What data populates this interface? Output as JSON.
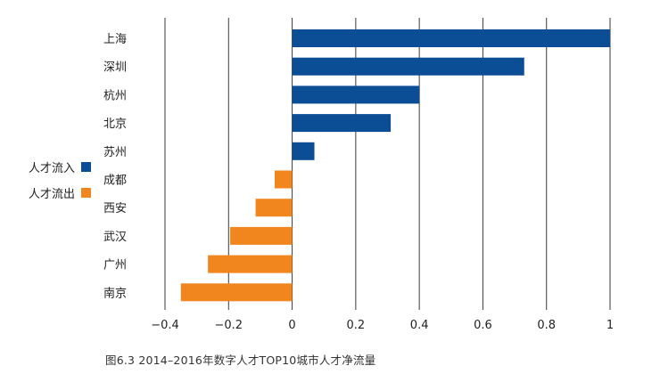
{
  "chart_data": {
    "type": "bar",
    "orientation": "horizontal",
    "caption": "图6.3 2014–2016年数字人才TOP10城市人才净流量",
    "categories": [
      "上海",
      "深圳",
      "杭州",
      "北京",
      "苏州",
      "成都",
      "西安",
      "武汉",
      "广州",
      "南京"
    ],
    "values": [
      1.0,
      0.73,
      0.4,
      0.31,
      0.07,
      -0.055,
      -0.115,
      -0.195,
      -0.265,
      -0.35
    ],
    "xlim": [
      -0.4,
      1.0
    ],
    "xticks": [
      -0.4,
      -0.2,
      0,
      0.2,
      0.4,
      0.6,
      0.8,
      1.0
    ],
    "xtick_labels": [
      "−0.4",
      "−0.2",
      "0",
      "0.2",
      "0.4",
      "0.6",
      "0.8",
      "1"
    ],
    "grid": "vertical",
    "legend": [
      {
        "label": "人才流入",
        "color": "#0b4e96"
      },
      {
        "label": "人才流出",
        "color": "#f0861d"
      }
    ],
    "colors": {
      "positive": "#0b4e96",
      "negative": "#f0861d",
      "grid": "#3a3a3a"
    }
  }
}
